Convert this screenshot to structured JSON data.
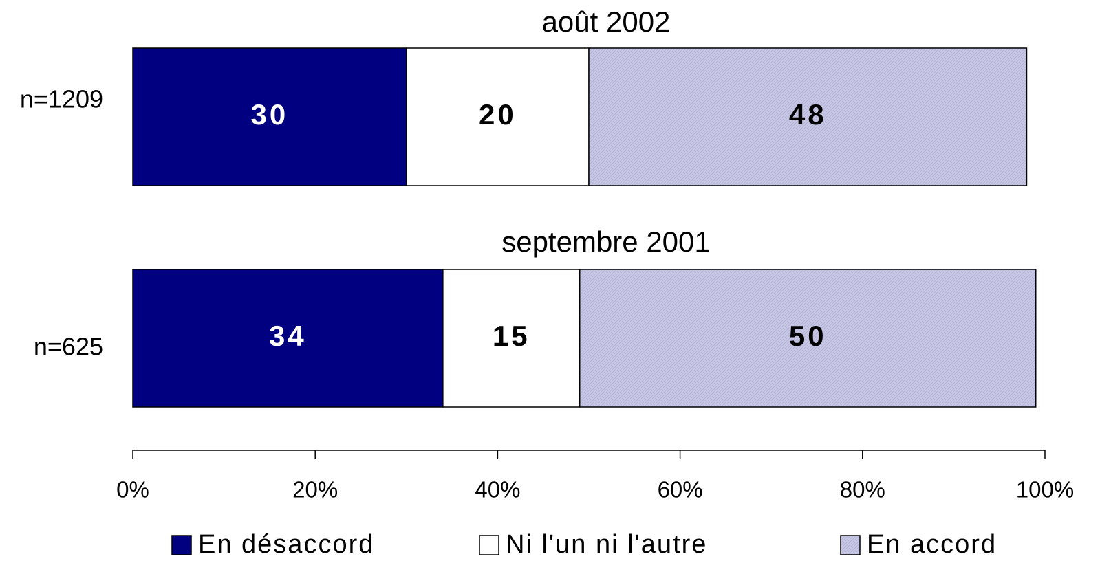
{
  "chart_data": {
    "type": "stacked_bar_horizontal",
    "categories": [
      "août 2002",
      "septembre 2001"
    ],
    "row_labels": [
      "n=1209",
      "n=625"
    ],
    "series": [
      {
        "name": "En désaccord",
        "color": "#000080",
        "label_color": "#ffffff",
        "values": [
          30,
          34
        ]
      },
      {
        "name": "Ni l'un ni l'autre",
        "color": "#ffffff",
        "label_color": "#000000",
        "values": [
          20,
          15
        ]
      },
      {
        "name": "En accord",
        "color": "#c8c8e6",
        "label_color": "#000000",
        "values": [
          48,
          50
        ]
      }
    ],
    "xlim": [
      0,
      100
    ],
    "xticks": [
      {
        "value": 0,
        "label": "0%"
      },
      {
        "value": 20,
        "label": "20%"
      },
      {
        "value": 40,
        "label": "40%"
      },
      {
        "value": 60,
        "label": "60%"
      },
      {
        "value": 80,
        "label": "80%"
      },
      {
        "value": 100,
        "label": "100%"
      }
    ],
    "legend": "bottom"
  }
}
